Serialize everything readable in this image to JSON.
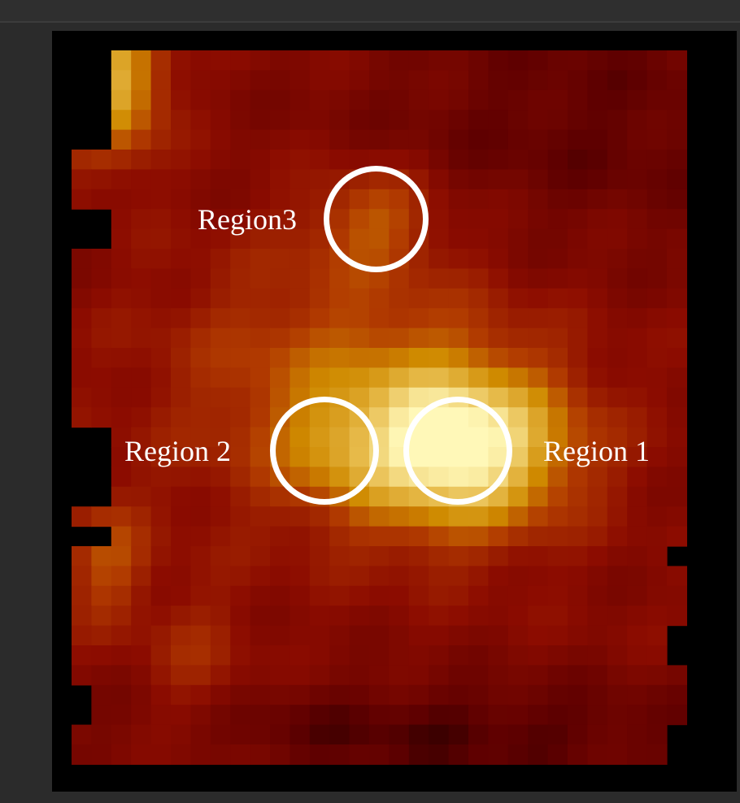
{
  "viewer": {
    "title": ""
  },
  "colormap": {
    "name": "afmhot",
    "stops": [
      "#000000",
      "#5e0000",
      "#8c0c00",
      "#b23c00",
      "#cf8a00",
      "#e8bd4e",
      "#fff8b8"
    ]
  },
  "regions": [
    {
      "id": "region1",
      "label": "Region 1"
    },
    {
      "id": "region2",
      "label": "Region 2"
    },
    {
      "id": "region3",
      "label": "Region3"
    }
  ],
  "colors": {
    "ring": "#ffffff",
    "label": "#ffffff",
    "background": "#2b2b2b",
    "frame": "#000000"
  }
}
